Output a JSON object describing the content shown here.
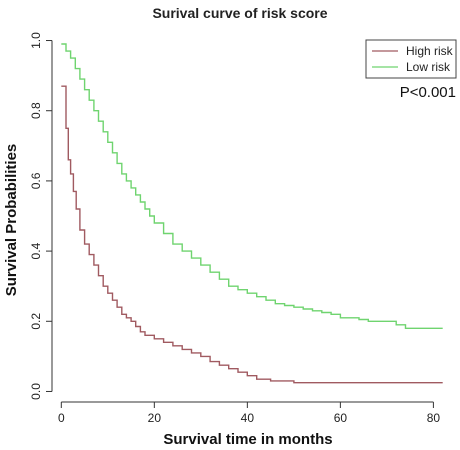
{
  "chart_data": {
    "type": "line",
    "title": "Surival curve of risk score",
    "xlabel": "Survival time in months",
    "ylabel": "Survival Probabilities",
    "xlim": [
      -2,
      84
    ],
    "ylim": [
      -0.03,
      1.03
    ],
    "xticks": [
      0,
      20,
      40,
      60,
      80
    ],
    "yticks": [
      0.0,
      0.2,
      0.4,
      0.6,
      0.8,
      1.0
    ],
    "annotation": "P<0.001",
    "legend_position": "top-right",
    "grid": false,
    "series": [
      {
        "name": "High risk",
        "color": "#a05a60",
        "step": true,
        "x": [
          0,
          1,
          1.5,
          2,
          2.6,
          3.2,
          4,
          5,
          6,
          7,
          8,
          9,
          10,
          11,
          12,
          13,
          14,
          15,
          16,
          17,
          18,
          20,
          22,
          24,
          26,
          28,
          30,
          32,
          34,
          36,
          38,
          40,
          42,
          45,
          50,
          60,
          70,
          82
        ],
        "y": [
          0.87,
          0.75,
          0.66,
          0.62,
          0.57,
          0.52,
          0.46,
          0.42,
          0.39,
          0.36,
          0.33,
          0.3,
          0.28,
          0.26,
          0.24,
          0.22,
          0.21,
          0.2,
          0.185,
          0.17,
          0.16,
          0.15,
          0.14,
          0.13,
          0.12,
          0.11,
          0.1,
          0.085,
          0.075,
          0.065,
          0.055,
          0.045,
          0.035,
          0.03,
          0.025,
          0.025,
          0.025,
          0.025
        ]
      },
      {
        "name": "Low risk",
        "color": "#6fd46f",
        "step": true,
        "x": [
          0,
          1,
          2,
          3,
          4,
          5,
          6,
          7,
          8,
          9,
          10,
          11,
          12,
          13,
          14,
          15,
          16,
          17,
          18,
          19,
          20,
          22,
          24,
          26,
          28,
          30,
          32,
          34,
          36,
          38,
          40,
          42,
          44,
          46,
          48,
          50,
          52,
          54,
          56,
          58,
          60,
          62,
          64,
          66,
          68,
          70,
          72,
          74,
          78,
          82
        ],
        "y": [
          0.99,
          0.97,
          0.95,
          0.92,
          0.89,
          0.86,
          0.83,
          0.8,
          0.77,
          0.74,
          0.71,
          0.68,
          0.65,
          0.62,
          0.6,
          0.58,
          0.56,
          0.54,
          0.52,
          0.5,
          0.48,
          0.45,
          0.42,
          0.4,
          0.38,
          0.36,
          0.34,
          0.32,
          0.3,
          0.29,
          0.28,
          0.27,
          0.26,
          0.25,
          0.245,
          0.24,
          0.235,
          0.23,
          0.225,
          0.22,
          0.21,
          0.21,
          0.205,
          0.2,
          0.2,
          0.2,
          0.19,
          0.18,
          0.18,
          0.18
        ]
      }
    ]
  }
}
